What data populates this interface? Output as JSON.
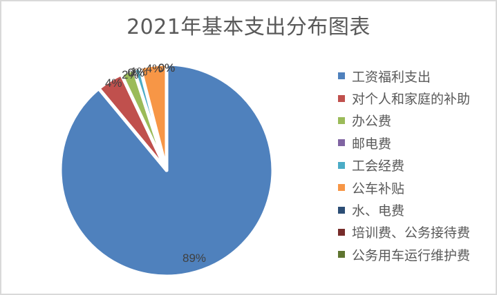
{
  "title": "2021年基本支出分布图表",
  "chart_data": {
    "type": "pie",
    "title": "2021年基本支出分布图表",
    "categories": [
      "工资福利支出",
      "对个人和家庭的补助",
      "办公费",
      "邮电费",
      "工会经费",
      "公车补贴",
      "水、电费",
      "培训费、公务接待费",
      "公务用车运行维护费"
    ],
    "values": [
      89,
      4,
      2,
      0,
      1,
      4,
      0,
      0,
      0
    ],
    "labels": [
      "89%",
      "4%",
      "2%",
      "0%",
      "1%",
      "4%",
      "0%",
      "0%",
      "0%"
    ],
    "colors": [
      "#4f81bd",
      "#c0504d",
      "#9bbb59",
      "#8064a2",
      "#4bacc6",
      "#f79646",
      "#2c4d75",
      "#772c2a",
      "#5f7530"
    ],
    "legend_position": "right"
  },
  "legend": {
    "items": [
      {
        "label": "工资福利支出",
        "color": "#4f81bd"
      },
      {
        "label": "对个人和家庭的补助",
        "color": "#c0504d"
      },
      {
        "label": "办公费",
        "color": "#9bbb59"
      },
      {
        "label": "邮电费",
        "color": "#8064a2"
      },
      {
        "label": "工会经费",
        "color": "#4bacc6"
      },
      {
        "label": "公车补贴",
        "color": "#f79646"
      },
      {
        "label": "水、电费",
        "color": "#2c4d75"
      },
      {
        "label": "培训费、公务接待费",
        "color": "#772c2a"
      },
      {
        "label": "公务用车运行维护费",
        "color": "#5f7530"
      }
    ]
  }
}
